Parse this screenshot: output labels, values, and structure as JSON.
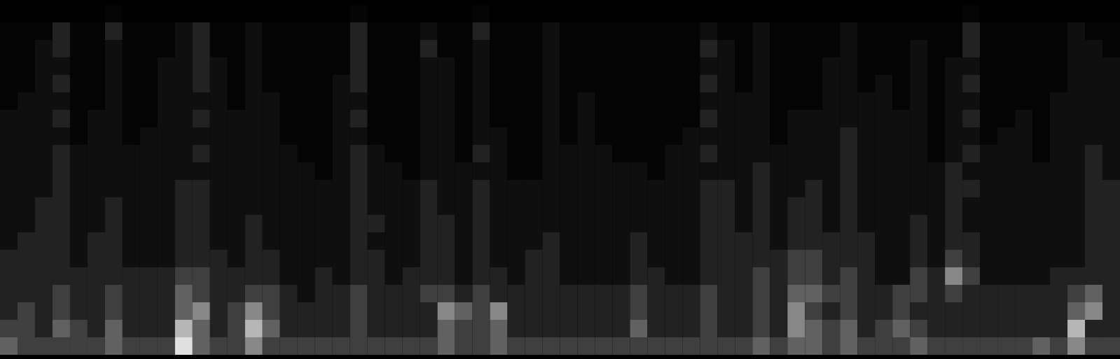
{
  "chart_data": {
    "type": "heatmap",
    "tick_labels": false,
    "color": "greys",
    "color_range": [
      0,
      9
    ],
    "cells": [
      [
        0,
        0,
        0,
        0,
        0,
        0,
        1,
        0,
        0,
        0,
        0,
        0,
        0,
        0,
        0,
        0,
        0,
        0,
        0,
        0,
        1,
        0,
        0,
        0,
        0,
        0,
        0,
        1,
        0,
        0,
        0,
        0,
        0,
        0,
        0,
        0,
        0,
        0,
        0,
        0,
        0,
        0,
        0,
        0,
        0,
        0,
        0,
        0,
        0,
        0,
        0,
        0,
        0,
        0,
        0,
        1,
        0,
        0,
        0,
        0,
        0,
        0,
        0,
        0
      ],
      [
        1,
        1,
        1,
        3,
        1,
        1,
        3,
        1,
        1,
        1,
        2,
        3,
        1,
        1,
        2,
        1,
        1,
        1,
        1,
        1,
        3,
        1,
        1,
        1,
        2,
        1,
        1,
        3,
        1,
        1,
        1,
        2,
        1,
        1,
        1,
        1,
        1,
        1,
        1,
        1,
        2,
        1,
        1,
        2,
        1,
        1,
        1,
        1,
        2,
        1,
        1,
        1,
        1,
        1,
        1,
        3,
        1,
        1,
        1,
        1,
        1,
        2,
        1,
        1
      ],
      [
        1,
        1,
        2,
        3,
        1,
        1,
        2,
        1,
        1,
        1,
        2,
        3,
        1,
        1,
        2,
        1,
        1,
        1,
        1,
        1,
        3,
        1,
        1,
        1,
        3,
        1,
        1,
        2,
        1,
        1,
        1,
        2,
        1,
        1,
        1,
        1,
        1,
        1,
        1,
        1,
        3,
        2,
        1,
        2,
        1,
        1,
        1,
        1,
        2,
        1,
        1,
        1,
        2,
        1,
        1,
        3,
        1,
        1,
        1,
        1,
        1,
        2,
        2,
        1
      ],
      [
        1,
        1,
        2,
        2,
        1,
        1,
        2,
        1,
        1,
        2,
        2,
        3,
        2,
        1,
        2,
        1,
        1,
        1,
        1,
        1,
        3,
        1,
        1,
        1,
        2,
        2,
        1,
        2,
        1,
        1,
        1,
        2,
        1,
        1,
        1,
        1,
        1,
        1,
        1,
        1,
        2,
        2,
        1,
        2,
        1,
        1,
        1,
        2,
        2,
        1,
        1,
        1,
        2,
        1,
        2,
        2,
        1,
        1,
        1,
        1,
        1,
        2,
        2,
        2
      ],
      [
        1,
        1,
        2,
        3,
        1,
        1,
        2,
        1,
        1,
        2,
        2,
        3,
        2,
        1,
        2,
        1,
        1,
        1,
        1,
        2,
        3,
        1,
        1,
        1,
        2,
        2,
        1,
        2,
        1,
        1,
        1,
        2,
        1,
        1,
        1,
        1,
        1,
        1,
        1,
        1,
        3,
        2,
        1,
        2,
        1,
        1,
        1,
        2,
        2,
        1,
        2,
        1,
        2,
        1,
        2,
        3,
        1,
        1,
        1,
        1,
        1,
        2,
        2,
        2
      ],
      [
        1,
        2,
        2,
        2,
        1,
        1,
        2,
        1,
        1,
        2,
        2,
        2,
        2,
        1,
        2,
        2,
        1,
        1,
        1,
        2,
        2,
        1,
        1,
        1,
        2,
        2,
        1,
        2,
        1,
        1,
        1,
        2,
        1,
        2,
        1,
        1,
        1,
        1,
        1,
        1,
        2,
        2,
        2,
        2,
        1,
        1,
        1,
        2,
        2,
        2,
        2,
        1,
        2,
        1,
        2,
        2,
        1,
        1,
        1,
        1,
        2,
        2,
        2,
        2
      ],
      [
        2,
        2,
        2,
        3,
        1,
        2,
        2,
        1,
        1,
        2,
        2,
        3,
        2,
        2,
        2,
        2,
        1,
        1,
        1,
        2,
        3,
        1,
        1,
        1,
        2,
        2,
        1,
        2,
        1,
        1,
        1,
        2,
        1,
        2,
        1,
        1,
        1,
        1,
        1,
        1,
        3,
        2,
        2,
        2,
        1,
        2,
        2,
        2,
        2,
        2,
        2,
        2,
        2,
        1,
        2,
        3,
        1,
        1,
        2,
        1,
        2,
        2,
        2,
        2
      ],
      [
        2,
        2,
        2,
        2,
        1,
        2,
        2,
        1,
        2,
        2,
        2,
        2,
        2,
        2,
        2,
        2,
        1,
        1,
        1,
        2,
        2,
        1,
        1,
        1,
        2,
        2,
        1,
        2,
        2,
        1,
        1,
        2,
        1,
        2,
        1,
        1,
        1,
        1,
        1,
        2,
        2,
        2,
        2,
        2,
        1,
        2,
        2,
        2,
        3,
        2,
        2,
        2,
        2,
        1,
        2,
        2,
        1,
        2,
        2,
        1,
        2,
        2,
        2,
        2
      ],
      [
        2,
        2,
        2,
        3,
        2,
        2,
        2,
        2,
        2,
        2,
        2,
        3,
        2,
        2,
        2,
        2,
        2,
        1,
        1,
        2,
        3,
        2,
        1,
        1,
        2,
        2,
        1,
        3,
        2,
        1,
        1,
        2,
        2,
        2,
        2,
        1,
        1,
        1,
        2,
        2,
        3,
        2,
        2,
        2,
        2,
        2,
        2,
        2,
        3,
        2,
        2,
        2,
        2,
        1,
        2,
        3,
        2,
        2,
        2,
        1,
        2,
        2,
        3,
        2
      ],
      [
        2,
        2,
        2,
        3,
        2,
        2,
        2,
        2,
        2,
        2,
        2,
        2,
        2,
        2,
        2,
        2,
        2,
        2,
        1,
        2,
        3,
        2,
        2,
        1,
        2,
        2,
        2,
        2,
        2,
        1,
        1,
        2,
        2,
        2,
        2,
        2,
        2,
        1,
        2,
        2,
        2,
        2,
        2,
        3,
        2,
        2,
        2,
        2,
        3,
        2,
        2,
        2,
        2,
        2,
        3,
        2,
        2,
        2,
        2,
        2,
        2,
        2,
        3,
        2
      ],
      [
        2,
        2,
        2,
        3,
        2,
        2,
        2,
        2,
        2,
        2,
        3,
        3,
        2,
        2,
        2,
        2,
        2,
        2,
        2,
        2,
        3,
        2,
        2,
        2,
        3,
        2,
        2,
        3,
        2,
        2,
        2,
        2,
        2,
        2,
        2,
        2,
        2,
        2,
        2,
        2,
        3,
        3,
        2,
        3,
        2,
        2,
        3,
        2,
        3,
        2,
        2,
        2,
        2,
        2,
        3,
        3,
        2,
        2,
        2,
        2,
        2,
        2,
        3,
        3
      ],
      [
        2,
        2,
        3,
        3,
        2,
        2,
        3,
        2,
        2,
        2,
        3,
        3,
        2,
        2,
        2,
        2,
        2,
        2,
        2,
        2,
        3,
        2,
        2,
        2,
        3,
        2,
        2,
        3,
        2,
        2,
        2,
        2,
        2,
        2,
        2,
        2,
        2,
        2,
        2,
        2,
        3,
        3,
        2,
        3,
        2,
        3,
        3,
        2,
        3,
        2,
        2,
        2,
        2,
        2,
        3,
        2,
        2,
        2,
        2,
        2,
        2,
        2,
        3,
        3
      ],
      [
        2,
        2,
        3,
        3,
        2,
        2,
        3,
        2,
        2,
        2,
        3,
        3,
        2,
        2,
        3,
        2,
        2,
        2,
        2,
        2,
        3,
        3,
        2,
        2,
        3,
        3,
        2,
        3,
        2,
        2,
        2,
        2,
        2,
        2,
        2,
        2,
        2,
        2,
        2,
        2,
        3,
        3,
        2,
        3,
        2,
        3,
        3,
        2,
        3,
        2,
        2,
        2,
        3,
        2,
        3,
        2,
        2,
        2,
        2,
        2,
        2,
        2,
        3,
        3
      ],
      [
        2,
        3,
        3,
        3,
        2,
        3,
        3,
        2,
        2,
        2,
        3,
        3,
        2,
        2,
        3,
        2,
        2,
        2,
        2,
        2,
        3,
        2,
        2,
        2,
        3,
        3,
        2,
        3,
        2,
        2,
        2,
        3,
        2,
        2,
        2,
        2,
        3,
        2,
        2,
        2,
        3,
        3,
        3,
        3,
        2,
        3,
        3,
        3,
        3,
        3,
        2,
        2,
        3,
        2,
        3,
        3,
        2,
        2,
        2,
        2,
        2,
        2,
        3,
        3
      ],
      [
        3,
        3,
        3,
        3,
        2,
        3,
        3,
        2,
        2,
        2,
        3,
        3,
        3,
        2,
        3,
        3,
        2,
        2,
        2,
        2,
        3,
        3,
        2,
        2,
        3,
        3,
        2,
        3,
        2,
        2,
        3,
        3,
        2,
        2,
        2,
        2,
        3,
        2,
        2,
        2,
        3,
        3,
        3,
        3,
        3,
        4,
        4,
        3,
        3,
        3,
        2,
        2,
        3,
        2,
        4,
        3,
        2,
        2,
        2,
        2,
        2,
        2,
        3,
        3
      ],
      [
        3,
        3,
        3,
        3,
        3,
        3,
        3,
        3,
        3,
        3,
        4,
        4,
        3,
        3,
        3,
        3,
        2,
        2,
        3,
        2,
        3,
        3,
        2,
        3,
        3,
        3,
        2,
        3,
        3,
        2,
        3,
        3,
        2,
        2,
        2,
        2,
        3,
        3,
        2,
        2,
        3,
        3,
        3,
        4,
        3,
        4,
        4,
        3,
        4,
        3,
        2,
        2,
        4,
        3,
        6,
        4,
        2,
        2,
        2,
        2,
        3,
        3,
        3,
        3
      ],
      [
        3,
        3,
        3,
        4,
        3,
        3,
        4,
        3,
        3,
        3,
        5,
        4,
        3,
        3,
        4,
        4,
        3,
        2,
        3,
        3,
        4,
        3,
        3,
        3,
        4,
        4,
        3,
        4,
        3,
        3,
        3,
        3,
        3,
        3,
        3,
        3,
        4,
        3,
        3,
        3,
        4,
        3,
        3,
        4,
        3,
        5,
        5,
        4,
        4,
        3,
        3,
        4,
        4,
        3,
        4,
        3,
        3,
        3,
        3,
        3,
        3,
        4,
        5,
        3
      ],
      [
        3,
        4,
        3,
        4,
        3,
        3,
        4,
        3,
        3,
        3,
        5,
        6,
        3,
        4,
        6,
        4,
        3,
        3,
        3,
        3,
        4,
        3,
        3,
        3,
        3,
        6,
        5,
        4,
        6,
        3,
        3,
        3,
        3,
        3,
        3,
        3,
        4,
        3,
        3,
        3,
        4,
        3,
        3,
        4,
        3,
        6,
        4,
        3,
        4,
        3,
        3,
        4,
        3,
        3,
        3,
        3,
        3,
        3,
        3,
        3,
        3,
        5,
        6,
        3
      ],
      [
        4,
        4,
        3,
        5,
        4,
        3,
        5,
        3,
        3,
        3,
        7,
        5,
        3,
        4,
        7,
        5,
        3,
        3,
        3,
        3,
        4,
        3,
        3,
        3,
        3,
        5,
        4,
        4,
        5,
        3,
        3,
        3,
        3,
        3,
        3,
        3,
        5,
        3,
        3,
        3,
        4,
        3,
        3,
        4,
        3,
        6,
        5,
        4,
        5,
        3,
        4,
        5,
        4,
        3,
        3,
        3,
        3,
        3,
        3,
        3,
        3,
        7,
        3,
        3
      ],
      [
        5,
        4,
        4,
        4,
        4,
        4,
        5,
        4,
        4,
        4,
        8,
        5,
        4,
        4,
        6,
        4,
        4,
        4,
        4,
        4,
        4,
        4,
        4,
        4,
        4,
        5,
        4,
        4,
        5,
        4,
        4,
        4,
        4,
        4,
        4,
        4,
        4,
        4,
        4,
        4,
        4,
        4,
        4,
        5,
        4,
        5,
        5,
        4,
        5,
        4,
        4,
        4,
        5,
        4,
        4,
        4,
        4,
        4,
        4,
        5,
        4,
        6,
        4,
        4
      ]
    ]
  }
}
